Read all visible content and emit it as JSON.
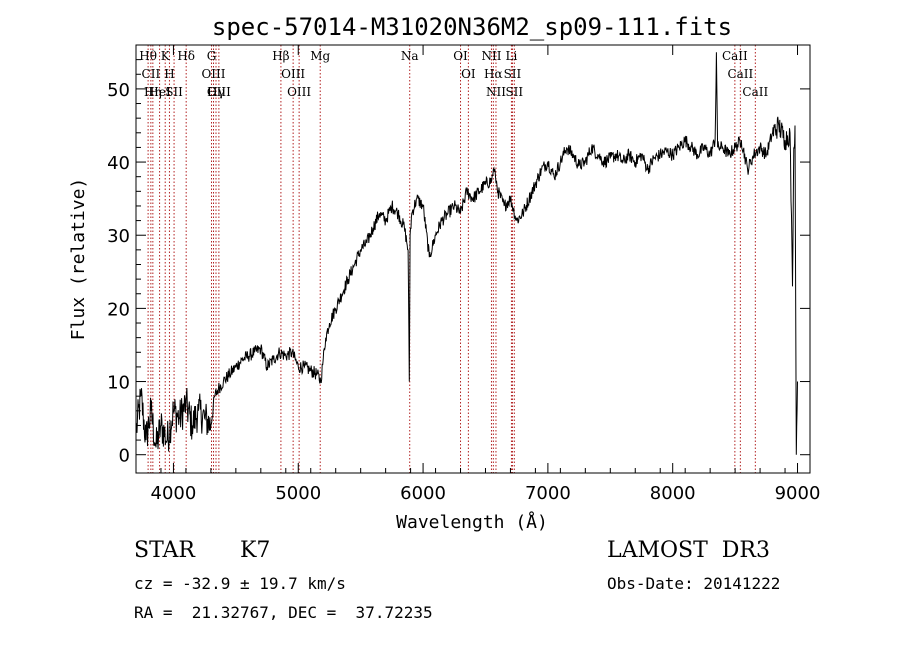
{
  "chart_data": {
    "type": "line",
    "title": "spec-57014-M31020N36M2_sp09-111.fits",
    "xlabel": "Wavelength (Å)",
    "ylabel": "Flux (relative)",
    "xlim": [
      3700,
      9100
    ],
    "ylim": [
      -2.5,
      56
    ],
    "xticks": [
      4000,
      5000,
      6000,
      7000,
      8000,
      9000
    ],
    "yticks": [
      0,
      10,
      20,
      30,
      40,
      50
    ],
    "grid": false,
    "line_color": "#000000",
    "marker_color": "#b22222",
    "series": [
      {
        "x": [
          3700,
          3740,
          3780,
          3820,
          3860,
          3900,
          3950,
          4000,
          4050,
          4100,
          4150,
          4200,
          4250,
          4300,
          4330,
          4360,
          4400,
          4450,
          4500,
          4550,
          4600,
          4650,
          4700,
          4750,
          4800,
          4850,
          4900,
          4950,
          5000,
          5050,
          5100,
          5150,
          5180,
          5200,
          5220,
          5250,
          5300,
          5350,
          5400,
          5450,
          5500,
          5550,
          5600,
          5650,
          5700,
          5750,
          5800,
          5850,
          5880,
          5890,
          5896,
          5910,
          5950,
          6000,
          6050,
          6100,
          6150,
          6200,
          6250,
          6300,
          6350,
          6400,
          6450,
          6500,
          6550,
          6563,
          6580,
          6600,
          6650,
          6700,
          6750,
          6800,
          6850,
          6900,
          6950,
          7000,
          7050,
          7100,
          7150,
          7200,
          7250,
          7300,
          7350,
          7400,
          7450,
          7500,
          7550,
          7600,
          7650,
          7700,
          7750,
          7800,
          7850,
          7900,
          7950,
          8000,
          8050,
          8100,
          8150,
          8200,
          8250,
          8300,
          8340,
          8350,
          8360,
          8400,
          8450,
          8500,
          8550,
          8600,
          8650,
          8700,
          8750,
          8800,
          8850,
          8900,
          8940,
          8960,
          8970,
          8980,
          8990,
          9000
        ],
        "y": [
          3,
          8,
          2,
          6,
          1,
          4,
          2,
          6,
          5,
          7,
          4,
          6,
          5,
          4,
          8,
          9,
          10,
          11,
          12,
          13,
          13.5,
          14,
          14.5,
          12,
          13,
          14,
          13.5,
          14,
          12,
          12,
          11.5,
          11,
          10,
          13,
          16,
          18,
          20,
          22,
          24,
          26,
          28,
          29,
          31,
          33,
          32,
          34,
          33,
          31,
          28,
          10,
          30,
          33,
          35,
          34,
          27,
          30,
          32,
          33,
          34,
          33,
          36,
          35,
          36,
          37,
          37.5,
          39,
          38,
          36,
          34,
          35,
          32,
          33,
          35,
          37,
          39,
          40,
          38,
          40,
          42,
          41,
          39.5,
          40,
          42,
          41,
          40,
          40.5,
          41,
          40,
          41,
          40,
          41,
          39,
          40.5,
          41,
          41.5,
          41,
          42,
          43,
          42,
          41,
          42,
          41,
          43,
          55,
          42,
          42,
          41,
          42,
          43,
          39,
          41,
          42,
          41,
          44,
          45,
          43,
          44,
          23,
          42,
          45,
          0,
          10
        ]
      }
    ],
    "lines": [
      {
        "label": "Hθ",
        "x": 3797
      },
      {
        "label": "CII",
        "x": 3819
      },
      {
        "label": "Hη",
        "x": 3835
      },
      {
        "label": "HeI",
        "x": 3889
      },
      {
        "label": "K",
        "x": 3934
      },
      {
        "label": "H",
        "x": 3968
      },
      {
        "label": "SII",
        "x": 4005
      },
      {
        "label": "Hδ",
        "x": 4102
      },
      {
        "label": "G",
        "x": 4305
      },
      {
        "label": "OIII",
        "x": 4321
      },
      {
        "label": "Hγ",
        "x": 4341
      },
      {
        "label": "OIII",
        "x": 4364
      },
      {
        "label": "Hβ",
        "x": 4861
      },
      {
        "label": "OIII",
        "x": 4959
      },
      {
        "label": "OIII",
        "x": 5007
      },
      {
        "label": "Mg",
        "x": 5176
      },
      {
        "label": "Na",
        "x": 5893
      },
      {
        "label": "OI",
        "x": 6300
      },
      {
        "label": "OI",
        "x": 6363
      },
      {
        "label": "NII",
        "x": 6548
      },
      {
        "label": "Hα",
        "x": 6563
      },
      {
        "label": "NII",
        "x": 6584
      },
      {
        "label": "SII",
        "x": 6716
      },
      {
        "label": "Li",
        "x": 6708
      },
      {
        "label": "SII",
        "x": 6731
      },
      {
        "label": "CaII",
        "x": 8498
      },
      {
        "label": "CaII",
        "x": 8542
      },
      {
        "label": "CaII",
        "x": 8662
      }
    ]
  },
  "info": {
    "class": "STAR",
    "subclass": "K7",
    "survey": "LAMOST  DR3",
    "cz": "cz = -32.9 ± 19.7 km/s",
    "obs_date": "Obs-Date: 20141222",
    "radec": "RA =  21.32767, DEC =  37.72235"
  }
}
